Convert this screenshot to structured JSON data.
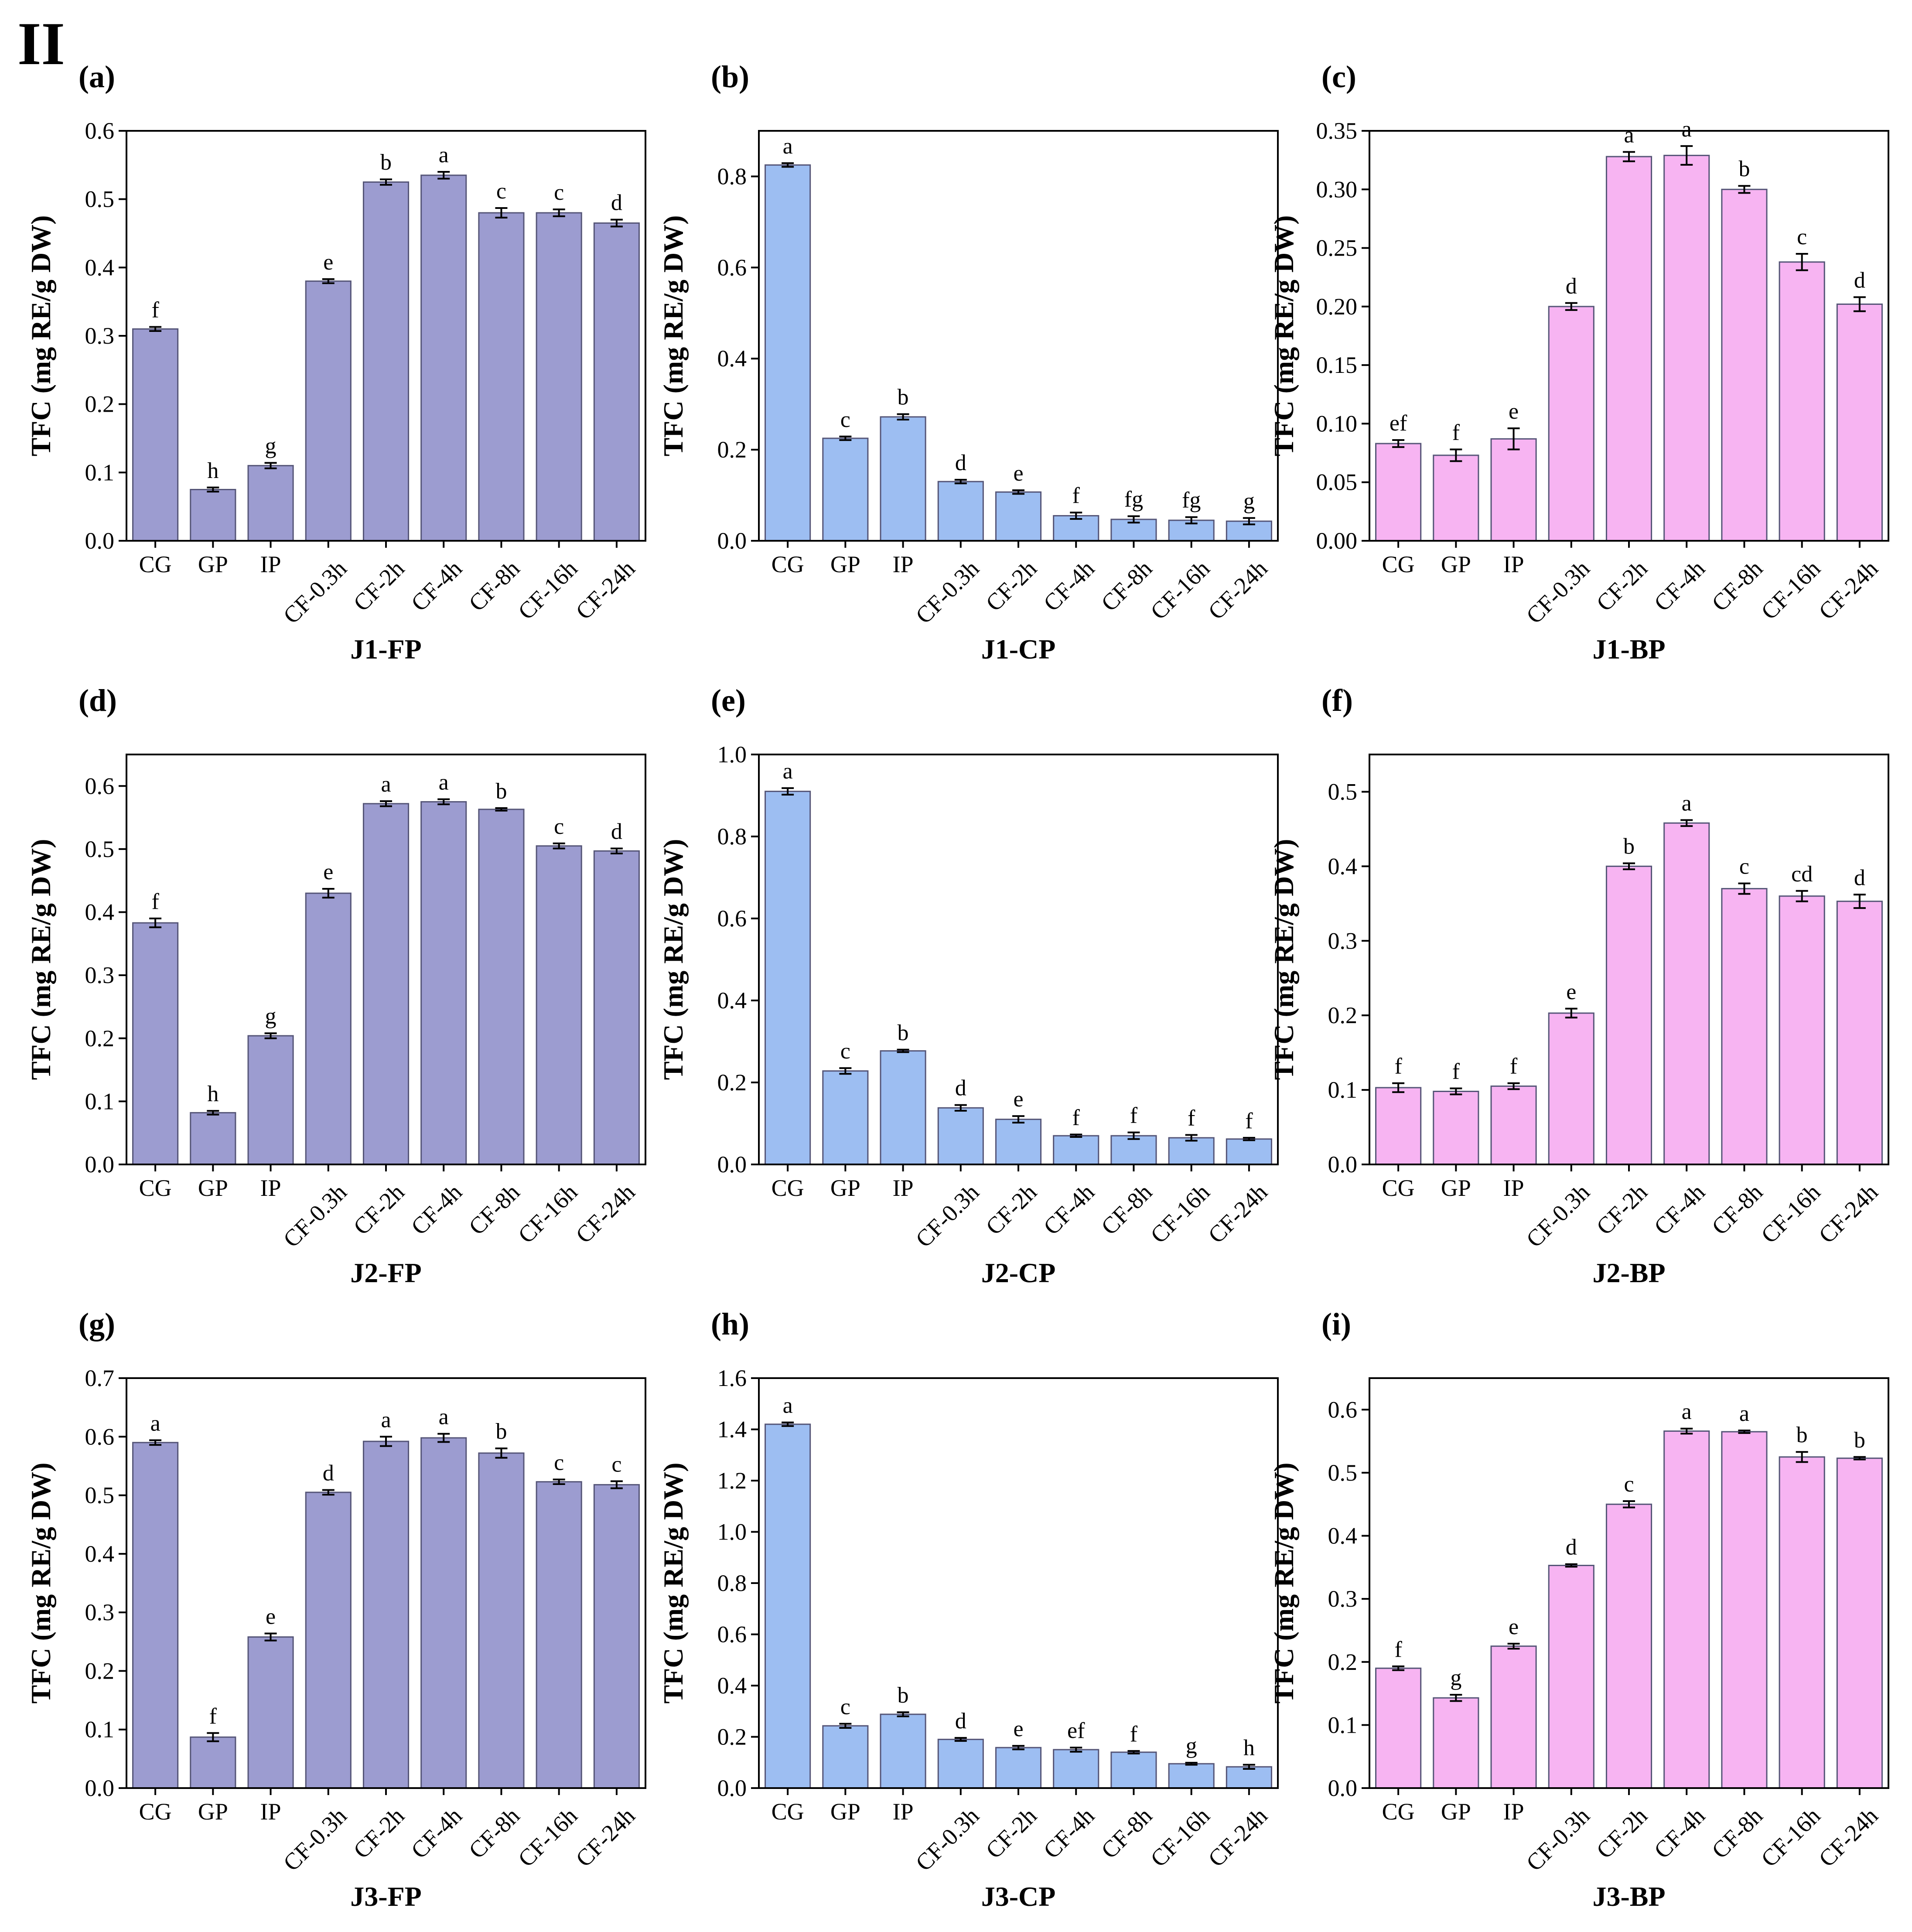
{
  "figure_label": "II",
  "y_axis_label": "TFC (mg RE/g DW)",
  "colors": {
    "FP": "#9c9cd0",
    "CP": "#9dbef2",
    "BP": "#f7b4f2",
    "edge": "#555577"
  },
  "chart_data": [
    {
      "type": "bar",
      "panel": "(a)",
      "title": "J1-FP",
      "group": "FP",
      "ylabel": "TFC (mg RE/g DW)",
      "ylim": [
        0,
        0.6
      ],
      "yticks": [
        "0.0",
        "0.1",
        "0.2",
        "0.3",
        "0.4",
        "0.5",
        "0.6"
      ],
      "categories": [
        "CG",
        "GP",
        "IP",
        "CF-0.3h",
        "CF-2h",
        "CF-4h",
        "CF-8h",
        "CF-16h",
        "CF-24h"
      ],
      "values": [
        0.31,
        0.075,
        0.11,
        0.38,
        0.525,
        0.535,
        0.48,
        0.48,
        0.465
      ],
      "errors": [
        0.003,
        0.003,
        0.004,
        0.003,
        0.004,
        0.005,
        0.007,
        0.005,
        0.005
      ],
      "letters": [
        "f",
        "h",
        "g",
        "e",
        "b",
        "a",
        "c",
        "c",
        "d"
      ]
    },
    {
      "type": "bar",
      "panel": "(b)",
      "title": "J1-CP",
      "group": "CP",
      "ylabel": "TFC (mg RE/g DW)",
      "ylim": [
        0,
        0.9
      ],
      "yticks": [
        "0.0",
        "0.2",
        "0.4",
        "0.6",
        "0.8"
      ],
      "categories": [
        "CG",
        "GP",
        "IP",
        "CF-0.3h",
        "CF-2h",
        "CF-4h",
        "CF-8h",
        "CF-16h",
        "CF-24h"
      ],
      "values": [
        0.825,
        0.225,
        0.272,
        0.13,
        0.107,
        0.055,
        0.047,
        0.045,
        0.043
      ],
      "errors": [
        0.004,
        0.004,
        0.006,
        0.004,
        0.004,
        0.007,
        0.007,
        0.007,
        0.007
      ],
      "letters": [
        "a",
        "c",
        "b",
        "d",
        "e",
        "f",
        "fg",
        "fg",
        "g"
      ]
    },
    {
      "type": "bar",
      "panel": "(c)",
      "title": "J1-BP",
      "group": "BP",
      "ylabel": "TFC (mg RE/g DW)",
      "ylim": [
        0,
        0.35
      ],
      "yticks": [
        "0.00",
        "0.05",
        "0.10",
        "0.15",
        "0.20",
        "0.25",
        "0.30",
        "0.35"
      ],
      "categories": [
        "CG",
        "GP",
        "IP",
        "CF-0.3h",
        "CF-2h",
        "CF-4h",
        "CF-8h",
        "CF-16h",
        "CF-24h"
      ],
      "values": [
        0.083,
        0.073,
        0.087,
        0.2,
        0.328,
        0.329,
        0.3,
        0.238,
        0.202
      ],
      "errors": [
        0.003,
        0.005,
        0.009,
        0.003,
        0.004,
        0.008,
        0.003,
        0.007,
        0.006
      ],
      "letters": [
        "ef",
        "f",
        "e",
        "d",
        "a",
        "a",
        "b",
        "c",
        "d"
      ]
    },
    {
      "type": "bar",
      "panel": "(d)",
      "title": "J2-FP",
      "group": "FP",
      "ylabel": "TFC (mg RE/g DW)",
      "ylim": [
        0,
        0.65
      ],
      "yticks": [
        "0.0",
        "0.1",
        "0.2",
        "0.3",
        "0.4",
        "0.5",
        "0.6"
      ],
      "categories": [
        "CG",
        "GP",
        "IP",
        "CF-0.3h",
        "CF-2h",
        "CF-4h",
        "CF-8h",
        "CF-16h",
        "CF-24h"
      ],
      "values": [
        0.383,
        0.082,
        0.204,
        0.43,
        0.572,
        0.575,
        0.563,
        0.505,
        0.497
      ],
      "errors": [
        0.007,
        0.003,
        0.004,
        0.007,
        0.004,
        0.004,
        0.002,
        0.004,
        0.004
      ],
      "letters": [
        "f",
        "h",
        "g",
        "e",
        "a",
        "a",
        "b",
        "c",
        "d"
      ]
    },
    {
      "type": "bar",
      "panel": "(e)",
      "title": "J2-CP",
      "group": "CP",
      "ylabel": "TFC (mg RE/g DW)",
      "ylim": [
        0,
        1.0
      ],
      "yticks": [
        "0.0",
        "0.2",
        "0.4",
        "0.6",
        "0.8",
        "1.0"
      ],
      "categories": [
        "CG",
        "GP",
        "IP",
        "CF-0.3h",
        "CF-2h",
        "CF-4h",
        "CF-8h",
        "CF-16h",
        "CF-24h"
      ],
      "values": [
        0.91,
        0.228,
        0.277,
        0.138,
        0.11,
        0.07,
        0.07,
        0.065,
        0.062
      ],
      "errors": [
        0.008,
        0.007,
        0.003,
        0.007,
        0.008,
        0.003,
        0.008,
        0.007,
        0.003
      ],
      "letters": [
        "a",
        "c",
        "b",
        "d",
        "e",
        "f",
        "f",
        "f",
        "f"
      ]
    },
    {
      "type": "bar",
      "panel": "(f)",
      "title": "J2-BP",
      "group": "BP",
      "ylabel": "TFC (mg RE/g DW)",
      "ylim": [
        0,
        0.55
      ],
      "yticks": [
        "0.0",
        "0.1",
        "0.2",
        "0.3",
        "0.4",
        "0.5"
      ],
      "categories": [
        "CG",
        "GP",
        "IP",
        "CF-0.3h",
        "CF-2h",
        "CF-4h",
        "CF-8h",
        "CF-16h",
        "CF-24h"
      ],
      "values": [
        0.103,
        0.098,
        0.105,
        0.203,
        0.4,
        0.458,
        0.37,
        0.36,
        0.353
      ],
      "errors": [
        0.006,
        0.004,
        0.004,
        0.006,
        0.004,
        0.004,
        0.007,
        0.007,
        0.009
      ],
      "letters": [
        "f",
        "f",
        "f",
        "e",
        "b",
        "a",
        "c",
        "cd",
        "d"
      ]
    },
    {
      "type": "bar",
      "panel": "(g)",
      "title": "J3-FP",
      "group": "FP",
      "ylabel": "TFC (mg RE/g DW)",
      "ylim": [
        0,
        0.7
      ],
      "yticks": [
        "0.0",
        "0.1",
        "0.2",
        "0.3",
        "0.4",
        "0.5",
        "0.6",
        "0.7"
      ],
      "categories": [
        "CG",
        "GP",
        "IP",
        "CF-0.3h",
        "CF-2h",
        "CF-4h",
        "CF-8h",
        "CF-16h",
        "CF-24h"
      ],
      "values": [
        0.59,
        0.087,
        0.258,
        0.505,
        0.592,
        0.598,
        0.572,
        0.523,
        0.518
      ],
      "errors": [
        0.004,
        0.007,
        0.006,
        0.004,
        0.008,
        0.007,
        0.008,
        0.004,
        0.006
      ],
      "letters": [
        "a",
        "f",
        "e",
        "d",
        "a",
        "a",
        "b",
        "c",
        "c"
      ]
    },
    {
      "type": "bar",
      "panel": "(h)",
      "title": "J3-CP",
      "group": "CP",
      "ylabel": "TFC (mg RE/g DW)",
      "ylim": [
        0,
        1.6
      ],
      "yticks": [
        "0.0",
        "0.2",
        "0.4",
        "0.6",
        "0.8",
        "1.0",
        "1.2",
        "1.4",
        "1.6"
      ],
      "categories": [
        "CG",
        "GP",
        "IP",
        "CF-0.3h",
        "CF-2h",
        "CF-4h",
        "CF-8h",
        "CF-16h",
        "CF-24h"
      ],
      "values": [
        1.42,
        0.243,
        0.288,
        0.19,
        0.158,
        0.15,
        0.14,
        0.095,
        0.083
      ],
      "errors": [
        0.007,
        0.008,
        0.008,
        0.006,
        0.007,
        0.008,
        0.005,
        0.004,
        0.008
      ],
      "letters": [
        "a",
        "c",
        "b",
        "d",
        "e",
        "ef",
        "f",
        "g",
        "h"
      ]
    },
    {
      "type": "bar",
      "panel": "(i)",
      "title": "J3-BP",
      "group": "BP",
      "ylabel": "TFC (mg RE/g DW)",
      "ylim": [
        0,
        0.65
      ],
      "yticks": [
        "0.0",
        "0.1",
        "0.2",
        "0.3",
        "0.4",
        "0.5",
        "0.6"
      ],
      "categories": [
        "CG",
        "GP",
        "IP",
        "CF-0.3h",
        "CF-2h",
        "CF-4h",
        "CF-8h",
        "CF-16h",
        "CF-24h"
      ],
      "values": [
        0.19,
        0.143,
        0.225,
        0.353,
        0.45,
        0.566,
        0.565,
        0.525,
        0.523
      ],
      "errors": [
        0.003,
        0.005,
        0.004,
        0.002,
        0.005,
        0.004,
        0.002,
        0.008,
        0.002
      ],
      "letters": [
        "f",
        "g",
        "e",
        "d",
        "c",
        "a",
        "a",
        "b",
        "b"
      ]
    }
  ]
}
